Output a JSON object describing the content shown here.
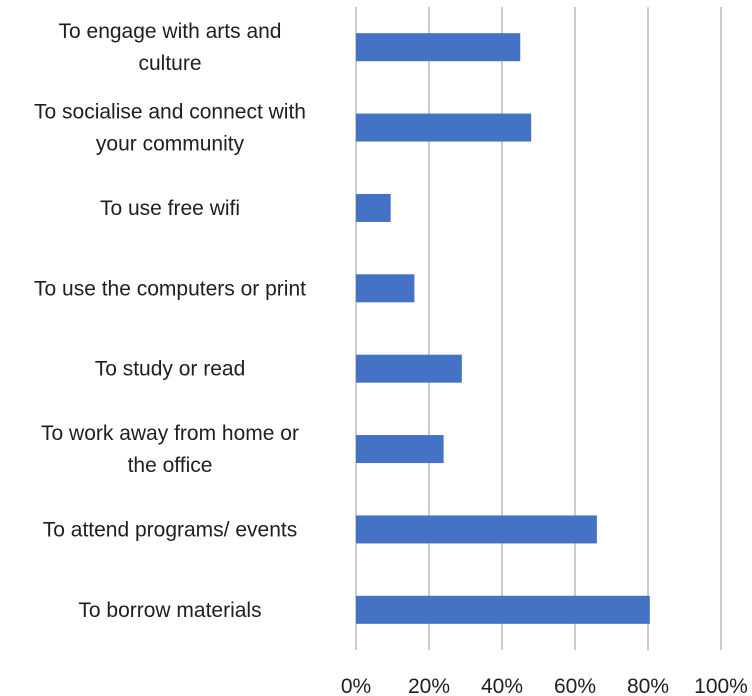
{
  "chart_data": {
    "type": "bar",
    "orientation": "horizontal",
    "categories": [
      "To engage with arts and culture",
      "To socialise and connect with your community",
      "To use free wifi",
      "To use the computers or print",
      "To study or read",
      "To work away from home or the office",
      "To attend programs/ events",
      "To borrow materials"
    ],
    "category_lines": [
      [
        "To engage with arts and",
        "culture"
      ],
      [
        "To socialise and connect with",
        "your community"
      ],
      [
        "To use free wifi"
      ],
      [
        "To use the computers or print"
      ],
      [
        "To study or read"
      ],
      [
        "To work away from home or",
        "the office"
      ],
      [
        "To attend programs/ events"
      ],
      [
        "To borrow materials"
      ]
    ],
    "values": [
      45,
      48,
      9.5,
      16,
      29,
      24,
      66,
      80.5
    ],
    "xlim": [
      0,
      100
    ],
    "x_ticks": [
      0,
      20,
      40,
      60,
      80,
      100
    ],
    "x_tick_labels": [
      "0%",
      "20%",
      "40%",
      "60%",
      "80%",
      "100%"
    ],
    "grid": true,
    "bar_color": "#4472c4",
    "grid_color": "#9a9a9a"
  }
}
